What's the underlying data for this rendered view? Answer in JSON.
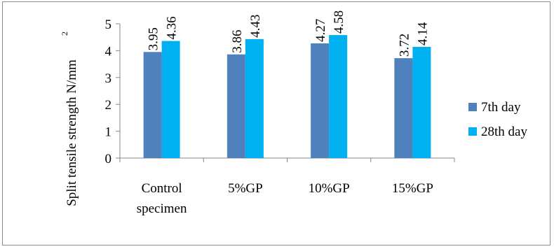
{
  "chart_data": {
    "type": "bar",
    "categories": [
      [
        "Control",
        "specimen"
      ],
      [
        "5%GP"
      ],
      [
        "10%GP"
      ],
      [
        "15%GP"
      ]
    ],
    "series": [
      {
        "name": "7th day",
        "values": [
          3.95,
          3.86,
          4.27,
          3.72
        ],
        "color": "#4f81bd"
      },
      {
        "name": "28th day",
        "values": [
          4.36,
          4.43,
          4.58,
          4.14
        ],
        "color": "#00b0f0"
      }
    ],
    "data_labels": [
      [
        "3.95",
        "3.86",
        "4.27",
        "3.72"
      ],
      [
        "4.36",
        "4.43",
        "4.58",
        "4.14"
      ]
    ],
    "ylabel": "Split tensile strength N/mm",
    "ylabel_superscript": "2",
    "ylim": [
      0,
      5
    ],
    "yticks": [
      "0",
      "1",
      "2",
      "3",
      "4",
      "5"
    ],
    "legend_position": "right",
    "grid": false
  }
}
